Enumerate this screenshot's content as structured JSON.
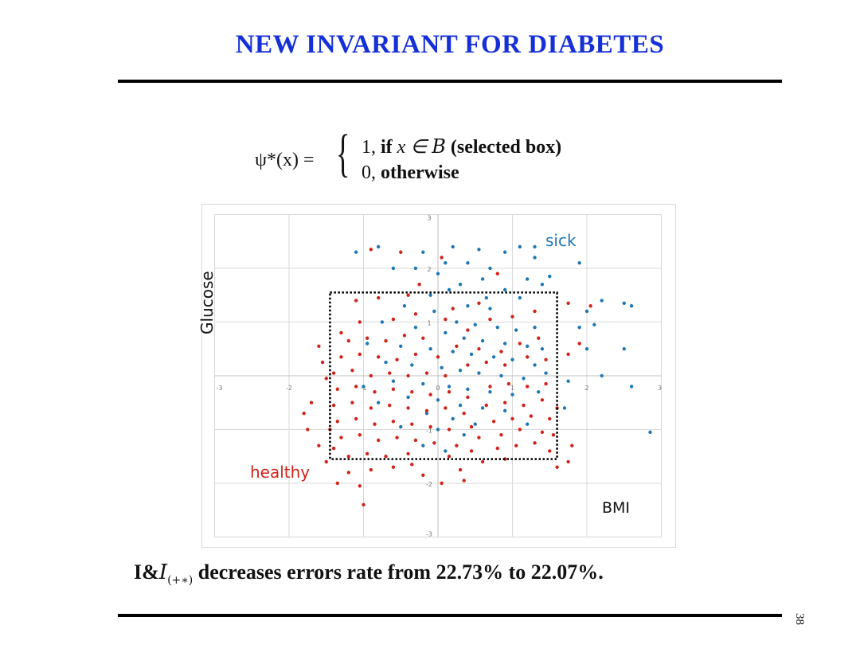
{
  "slide": {
    "title": "NEW INVARIANT FOR DIABETES",
    "page_number": "38"
  },
  "formula": {
    "lhs": "ψ*(x) =",
    "case1_value": "1,",
    "case1_word": "if",
    "case1_math": "x ∈ ",
    "case1_set": "B",
    "case1_note": "(selected box)",
    "case2_value": "0,",
    "case2_word": "otherwise"
  },
  "statement": {
    "prefix": "I&",
    "script": "I",
    "subscript": "(+∗)",
    "text": "decreases errors rate from 22.73% to 22.07%."
  },
  "chart_data": {
    "type": "scatter",
    "xlabel": "BMI",
    "ylabel": "Glucose",
    "xlim": [
      -3,
      3
    ],
    "ylim": [
      -3,
      3
    ],
    "x_ticks": [
      "-3",
      "-2",
      "-1",
      "0",
      "1",
      "2",
      "3"
    ],
    "y_ticks": [
      "-3",
      "-2",
      "-1",
      "0",
      "1",
      "2",
      "3"
    ],
    "grid": true,
    "selected_box": {
      "x": [
        -1.45,
        1.6
      ],
      "y": [
        -1.55,
        1.55
      ]
    },
    "colors": {
      "sick": "#1f77b4",
      "healthy": "#d0231a",
      "grid": "#d9d9d9",
      "box": "#000000"
    },
    "series": [
      {
        "name": "sick",
        "points": [
          [
            -1.1,
            2.3
          ],
          [
            -0.8,
            2.4
          ],
          [
            -0.2,
            2.3
          ],
          [
            0.2,
            2.4
          ],
          [
            0.55,
            2.35
          ],
          [
            0.9,
            2.3
          ],
          [
            1.1,
            2.4
          ],
          [
            1.3,
            2.4
          ],
          [
            -0.3,
            2.0
          ],
          [
            0.1,
            2.1
          ],
          [
            0.4,
            2.1
          ],
          [
            0.7,
            2.0
          ],
          [
            1.3,
            2.2
          ],
          [
            1.9,
            2.1
          ],
          [
            -0.6,
            2.0
          ],
          [
            0.0,
            1.9
          ],
          [
            0.3,
            1.7
          ],
          [
            0.6,
            1.8
          ],
          [
            1.2,
            1.8
          ],
          [
            1.5,
            1.85
          ],
          [
            0.15,
            1.6
          ],
          [
            0.9,
            1.6
          ],
          [
            1.4,
            1.7
          ],
          [
            -0.1,
            1.5
          ],
          [
            2.2,
            1.4
          ],
          [
            2.5,
            1.35
          ],
          [
            2.6,
            1.3
          ],
          [
            2.0,
            1.2
          ],
          [
            1.9,
            0.9
          ],
          [
            2.1,
            0.95
          ],
          [
            2.0,
            0.5
          ],
          [
            2.5,
            0.5
          ],
          [
            2.2,
            0.0
          ],
          [
            1.75,
            -0.1
          ],
          [
            2.6,
            -0.2
          ],
          [
            1.7,
            -0.6
          ],
          [
            2.85,
            -1.05
          ],
          [
            0.4,
            1.3
          ],
          [
            0.7,
            1.25
          ],
          [
            -0.05,
            1.2
          ],
          [
            0.25,
            1.0
          ],
          [
            0.5,
            0.95
          ],
          [
            0.8,
            0.9
          ],
          [
            1.05,
            0.85
          ],
          [
            1.3,
            0.9
          ],
          [
            -0.3,
            0.9
          ],
          [
            0.1,
            0.8
          ],
          [
            0.35,
            0.7
          ],
          [
            0.6,
            0.65
          ],
          [
            0.9,
            0.6
          ],
          [
            1.2,
            0.55
          ],
          [
            1.4,
            0.5
          ],
          [
            -0.5,
            0.55
          ],
          [
            -0.1,
            0.5
          ],
          [
            0.2,
            0.45
          ],
          [
            0.45,
            0.4
          ],
          [
            0.75,
            0.35
          ],
          [
            1.0,
            0.3
          ],
          [
            1.3,
            0.2
          ],
          [
            -0.7,
            0.25
          ],
          [
            -0.35,
            0.2
          ],
          [
            0.05,
            0.15
          ],
          [
            0.3,
            0.1
          ],
          [
            0.55,
            0.05
          ],
          [
            0.85,
            0.0
          ],
          [
            1.15,
            -0.05
          ],
          [
            1.45,
            0.05
          ],
          [
            -0.6,
            -0.1
          ],
          [
            -0.2,
            -0.15
          ],
          [
            0.15,
            -0.2
          ],
          [
            0.4,
            -0.25
          ],
          [
            0.7,
            -0.3
          ],
          [
            1.0,
            -0.35
          ],
          [
            -0.4,
            -0.4
          ],
          [
            0.0,
            -0.45
          ],
          [
            0.3,
            -0.55
          ],
          [
            0.6,
            -0.6
          ],
          [
            0.9,
            -0.65
          ],
          [
            -0.8,
            -0.5
          ],
          [
            -0.15,
            -0.7
          ],
          [
            0.2,
            -0.8
          ],
          [
            0.5,
            -0.9
          ],
          [
            -0.5,
            -0.95
          ],
          [
            0.0,
            -1.0
          ],
          [
            0.35,
            -1.1
          ],
          [
            -0.2,
            -1.3
          ],
          [
            0.1,
            -1.4
          ],
          [
            1.2,
            -0.9
          ],
          [
            1.35,
            -0.3
          ],
          [
            -1.0,
            -0.2
          ],
          [
            -0.95,
            0.6
          ],
          [
            -0.75,
            1.0
          ],
          [
            -0.45,
            1.3
          ],
          [
            0.65,
            1.45
          ],
          [
            1.1,
            1.45
          ]
        ]
      },
      {
        "name": "healthy",
        "points": [
          [
            -0.9,
            2.35
          ],
          [
            -0.5,
            2.3
          ],
          [
            0.05,
            2.2
          ],
          [
            -0.25,
            1.7
          ],
          [
            0.8,
            1.9
          ],
          [
            -1.1,
            1.4
          ],
          [
            -0.8,
            1.45
          ],
          [
            -0.4,
            1.5
          ],
          [
            1.75,
            1.35
          ],
          [
            2.05,
            1.3
          ],
          [
            1.9,
            0.6
          ],
          [
            1.75,
            0.4
          ],
          [
            1.6,
            -0.6
          ],
          [
            1.8,
            -1.3
          ],
          [
            1.75,
            -1.6
          ],
          [
            1.6,
            -1.7
          ],
          [
            -1.7,
            -0.5
          ],
          [
            -1.8,
            -0.7
          ],
          [
            -1.75,
            -1.0
          ],
          [
            -1.6,
            -1.3
          ],
          [
            -1.5,
            -1.6
          ],
          [
            -1.35,
            -2.0
          ],
          [
            -1.05,
            -2.05
          ],
          [
            -1.0,
            -2.4
          ],
          [
            -0.2,
            -1.85
          ],
          [
            0.05,
            -2.0
          ],
          [
            0.3,
            -1.75
          ],
          [
            0.6,
            -1.6
          ],
          [
            0.9,
            -1.55
          ],
          [
            -1.55,
            0.25
          ],
          [
            -1.6,
            0.55
          ],
          [
            -1.3,
            0.8
          ],
          [
            -1.4,
            -1.35
          ],
          [
            -1.2,
            -1.5
          ],
          [
            -0.95,
            -1.45
          ],
          [
            -0.7,
            -1.5
          ],
          [
            -0.4,
            -1.45
          ],
          [
            0.15,
            -1.5
          ],
          [
            0.45,
            -1.4
          ],
          [
            0.8,
            -1.35
          ],
          [
            1.05,
            -1.3
          ],
          [
            1.3,
            -1.25
          ],
          [
            1.5,
            -1.4
          ],
          [
            -1.3,
            -1.15
          ],
          [
            -1.05,
            -1.1
          ],
          [
            -0.8,
            -1.2
          ],
          [
            -0.55,
            -1.15
          ],
          [
            -0.3,
            -1.2
          ],
          [
            -0.05,
            -1.25
          ],
          [
            0.25,
            -1.3
          ],
          [
            0.55,
            -1.15
          ],
          [
            0.85,
            -1.1
          ],
          [
            1.1,
            -1.0
          ],
          [
            1.4,
            -1.05
          ],
          [
            -1.35,
            -0.85
          ],
          [
            -1.1,
            -0.8
          ],
          [
            -0.85,
            -0.9
          ],
          [
            -0.6,
            -0.85
          ],
          [
            -0.35,
            -0.9
          ],
          [
            -0.1,
            -0.95
          ],
          [
            0.15,
            -1.0
          ],
          [
            0.45,
            -0.95
          ],
          [
            0.75,
            -0.85
          ],
          [
            1.0,
            -0.8
          ],
          [
            1.25,
            -0.75
          ],
          [
            1.5,
            -0.8
          ],
          [
            -1.4,
            -0.55
          ],
          [
            -1.15,
            -0.5
          ],
          [
            -0.9,
            -0.6
          ],
          [
            -0.65,
            -0.55
          ],
          [
            -0.4,
            -0.6
          ],
          [
            -0.15,
            -0.65
          ],
          [
            0.1,
            -0.6
          ],
          [
            0.35,
            -0.7
          ],
          [
            0.65,
            -0.55
          ],
          [
            0.9,
            -0.5
          ],
          [
            1.15,
            -0.55
          ],
          [
            1.4,
            -0.45
          ],
          [
            -1.35,
            -0.25
          ],
          [
            -1.1,
            -0.2
          ],
          [
            -0.85,
            -0.3
          ],
          [
            -0.6,
            -0.25
          ],
          [
            -0.35,
            -0.3
          ],
          [
            -0.1,
            -0.35
          ],
          [
            0.15,
            -0.3
          ],
          [
            0.4,
            -0.4
          ],
          [
            0.7,
            -0.2
          ],
          [
            0.95,
            -0.15
          ],
          [
            1.2,
            -0.2
          ],
          [
            1.45,
            -0.15
          ],
          [
            -1.4,
            0.05
          ],
          [
            -1.15,
            0.1
          ],
          [
            -0.9,
            0.0
          ],
          [
            -0.65,
            0.05
          ],
          [
            -0.4,
            0.0
          ],
          [
            -0.15,
            0.05
          ],
          [
            0.1,
            0.0
          ],
          [
            0.4,
            0.2
          ],
          [
            0.65,
            0.25
          ],
          [
            0.9,
            0.2
          ],
          [
            1.2,
            0.35
          ],
          [
            1.45,
            0.3
          ],
          [
            -1.3,
            0.35
          ],
          [
            -1.05,
            0.4
          ],
          [
            -0.8,
            0.35
          ],
          [
            -0.55,
            0.3
          ],
          [
            -0.3,
            0.4
          ],
          [
            0.0,
            0.35
          ],
          [
            0.25,
            0.55
          ],
          [
            0.55,
            0.5
          ],
          [
            0.85,
            0.45
          ],
          [
            1.1,
            0.6
          ],
          [
            1.35,
            0.7
          ],
          [
            -1.2,
            0.65
          ],
          [
            -0.95,
            0.7
          ],
          [
            -0.7,
            0.65
          ],
          [
            -0.45,
            0.75
          ],
          [
            -0.2,
            0.7
          ],
          [
            0.1,
            1.05
          ],
          [
            0.4,
            0.85
          ],
          [
            0.7,
            1.05
          ],
          [
            1.0,
            1.1
          ],
          [
            1.3,
            1.2
          ],
          [
            -1.05,
            1.0
          ],
          [
            -0.6,
            1.05
          ],
          [
            -0.3,
            1.15
          ],
          [
            0.2,
            1.25
          ],
          [
            0.55,
            1.35
          ],
          [
            -1.2,
            -1.8
          ],
          [
            -0.9,
            -1.75
          ],
          [
            -0.6,
            -1.7
          ],
          [
            -0.35,
            -1.65
          ],
          [
            0.35,
            -1.95
          ],
          [
            -1.5,
            -0.05
          ],
          [
            -1.45,
            -1.0
          ],
          [
            1.55,
            -1.1
          ]
        ]
      }
    ]
  }
}
